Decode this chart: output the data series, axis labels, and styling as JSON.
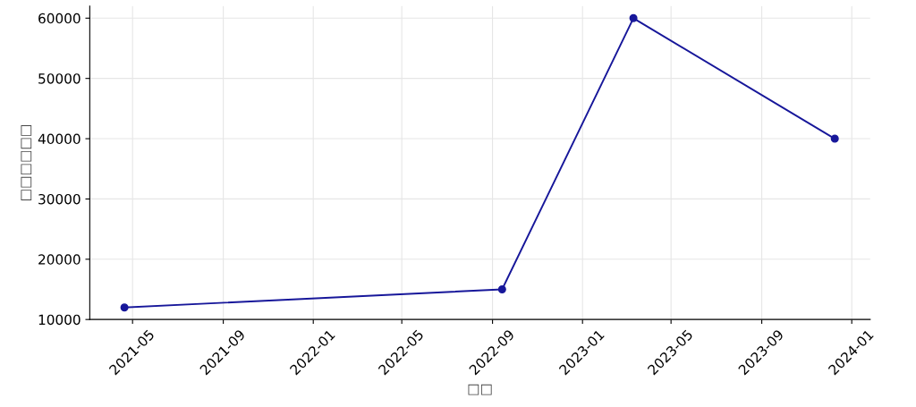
{
  "chart_data": {
    "type": "line",
    "xlabel": "□□",
    "ylabel": "□□□□□□",
    "x": [
      "2021-04-20",
      "2022-09-14",
      "2023-03-11",
      "2023-12-09"
    ],
    "series": [
      {
        "color": "#17179a",
        "values": [
          12000,
          15000,
          60000,
          40000
        ]
      }
    ],
    "xlim": [
      "2021-03-04",
      "2024-01-26"
    ],
    "xticks": [
      "2021-05",
      "2021-09",
      "2022-01",
      "2022-05",
      "2022-09",
      "2023-01",
      "2023-05",
      "2023-09",
      "2024-01"
    ],
    "ylim": [
      10000,
      62000
    ],
    "yticks": [
      10000,
      20000,
      30000,
      40000,
      50000,
      60000
    ],
    "grid": true,
    "marker": "circle",
    "line_style": "solid"
  }
}
